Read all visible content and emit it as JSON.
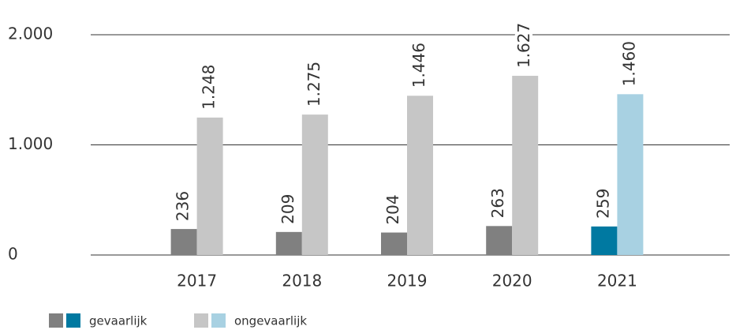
{
  "chart_data": {
    "type": "bar",
    "categories": [
      "2017",
      "2018",
      "2019",
      "2020",
      "2021"
    ],
    "series": [
      {
        "name": "gevaarlijk",
        "colors": [
          "#808080",
          "#808080",
          "#808080",
          "#808080",
          "#0079a1"
        ],
        "values": [
          236,
          209,
          204,
          263,
          259
        ]
      },
      {
        "name": "ongevaarlijk",
        "colors": [
          "#c6c6c6",
          "#c6c6c6",
          "#c6c6c6",
          "#c6c6c6",
          "#a8d1e2"
        ],
        "values": [
          1248,
          1275,
          1446,
          1627,
          1460
        ],
        "value_labels": [
          "1.248",
          "1.275",
          "1.446",
          "1.627",
          "1.460"
        ]
      }
    ],
    "ylim": [
      0,
      2000
    ],
    "yticks": [
      0,
      {
        "value": 1000,
        "label": "1.000"
      },
      {
        "value": 2000,
        "label": "2.000"
      }
    ],
    "grid": true
  }
}
